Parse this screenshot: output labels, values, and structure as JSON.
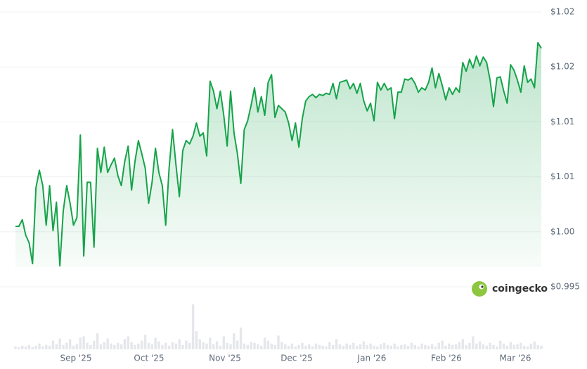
{
  "chart_data": {
    "type": "line",
    "color": "#16a34a",
    "ylim": [
      0.995,
      1.02
    ],
    "yticks": [
      {
        "value": 1.02,
        "label": "$1.02"
      },
      {
        "value": 1.015,
        "label": "$1.02"
      },
      {
        "value": 1.01,
        "label": "$1.01"
      },
      {
        "value": 1.005,
        "label": "$1.01"
      },
      {
        "value": 1.0,
        "label": "$1.00"
      },
      {
        "value": 0.995,
        "label": "$0.995"
      }
    ],
    "grid": true,
    "xtick_labels": [
      "Sep '25",
      "Oct '25",
      "Nov '25",
      "Dec '25",
      "Jan '26",
      "Feb '26",
      "Mar '26"
    ],
    "values": [
      1.0005,
      1.0005,
      1.0011,
      0.9997,
      0.999,
      0.9971,
      1.004,
      1.0056,
      1.0042,
      1.0006,
      1.0042,
      1.0001,
      1.0027,
      0.9969,
      1.0019,
      1.0042,
      1.0026,
      1.0006,
      1.0013,
      1.0088,
      0.9978,
      1.0045,
      1.0045,
      0.9986,
      1.0076,
      1.0054,
      1.0077,
      1.0054,
      1.0061,
      1.0067,
      1.0051,
      1.0042,
      1.0064,
      1.0078,
      1.0038,
      1.0064,
      1.0083,
      1.0071,
      1.0058,
      1.0026,
      1.0045,
      1.0076,
      1.0054,
      1.0042,
      1.0006,
      1.0058,
      1.0093,
      1.0061,
      1.0032,
      1.0074,
      1.0083,
      1.008,
      1.0087,
      1.0099,
      1.0087,
      1.009,
      1.0069,
      1.0137,
      1.0128,
      1.0112,
      1.0128,
      1.0106,
      1.0078,
      1.0128,
      1.009,
      1.0071,
      1.0044,
      1.0093,
      1.0101,
      1.0115,
      1.0131,
      1.0109,
      1.0123,
      1.0106,
      1.0136,
      1.0143,
      1.0104,
      1.0115,
      1.0112,
      1.0109,
      1.0099,
      1.0083,
      1.0099,
      1.0077,
      1.0103,
      1.0119,
      1.0123,
      1.0125,
      1.0122,
      1.0125,
      1.0124,
      1.0126,
      1.0125,
      1.0135,
      1.0121,
      1.0136,
      1.0137,
      1.0138,
      1.013,
      1.0135,
      1.0126,
      1.0135,
      1.0119,
      1.011,
      1.0117,
      1.0101,
      1.0136,
      1.0129,
      1.0135,
      1.0129,
      1.0131,
      1.0103,
      1.0127,
      1.0127,
      1.0139,
      1.0138,
      1.014,
      1.0135,
      1.0127,
      1.0131,
      1.0129,
      1.0136,
      1.0149,
      1.0131,
      1.0144,
      1.0133,
      1.012,
      1.0131,
      1.0125,
      1.0131,
      1.0127,
      1.0154,
      1.0146,
      1.0157,
      1.0149,
      1.016,
      1.0151,
      1.0159,
      1.0154,
      1.0138,
      1.0114,
      1.014,
      1.0141,
      1.0128,
      1.0117,
      1.0152,
      1.0147,
      1.0138,
      1.0127,
      1.0151,
      1.0136,
      1.0139,
      1.0131,
      1.0172,
      1.0167
    ],
    "volume_color": "#e5e7eb",
    "volume_lim": [
      0,
      65
    ],
    "volumes": [
      4,
      3,
      5,
      4,
      6,
      3,
      5,
      8,
      4,
      6,
      5,
      12,
      7,
      15,
      6,
      9,
      14,
      5,
      7,
      16,
      18,
      9,
      6,
      12,
      22,
      7,
      10,
      15,
      8,
      6,
      9,
      7,
      14,
      18,
      10,
      6,
      8,
      12,
      20,
      9,
      7,
      16,
      11,
      6,
      9,
      5,
      10,
      8,
      14,
      6,
      12,
      9,
      62,
      25,
      14,
      10,
      8,
      16,
      7,
      11,
      5,
      18,
      9,
      7,
      22,
      12,
      30,
      8,
      6,
      10,
      9,
      7,
      5,
      16,
      12,
      8,
      6,
      19,
      10,
      7,
      5,
      8,
      4,
      6,
      9,
      5,
      7,
      4,
      8,
      6,
      5,
      4,
      10,
      6,
      14,
      7,
      5,
      8,
      6,
      9,
      5,
      7,
      11,
      6,
      8,
      5,
      4,
      7,
      9,
      6,
      5,
      8,
      4,
      6,
      7,
      5,
      9,
      6,
      4,
      8,
      6,
      5,
      7,
      4,
      9,
      12,
      5,
      8,
      6,
      7,
      10,
      14,
      6,
      9,
      18,
      8,
      11,
      7,
      5,
      9,
      6,
      4,
      12,
      8,
      5,
      10,
      6,
      7,
      9,
      5,
      4,
      8,
      11,
      6,
      5
    ],
    "brand": "coingecko"
  }
}
